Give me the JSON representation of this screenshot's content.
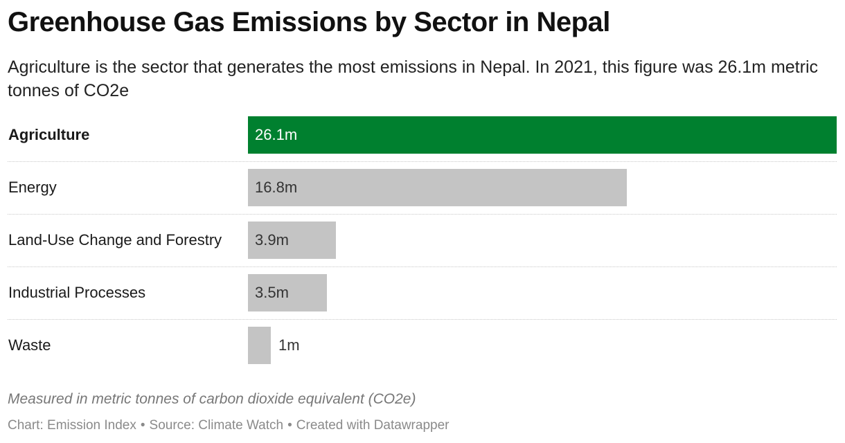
{
  "title": "Greenhouse Gas Emissions by Sector in Nepal",
  "subtitle": "Agriculture is the sector that generates the most emissions in Nepal. In 2021, this figure was 26.1m metric tonnes of CO2e",
  "note": "Measured in metric tonnes of carbon dioxide equivalent (CO2e)",
  "footer": {
    "chart": "Chart: Emission Index",
    "source": "Source: Climate Watch",
    "created": "Created with Datawrapper",
    "separator": "•"
  },
  "colors": {
    "highlight": "#00802f",
    "default_bar": "#c4c4c4",
    "highlight_text": "#ffffff",
    "default_text": "#333333"
  },
  "chart_data": {
    "type": "bar",
    "orientation": "horizontal",
    "categories": [
      "Agriculture",
      "Energy",
      "Land-Use Change and Forestry",
      "Industrial Processes",
      "Waste"
    ],
    "values": [
      26.1,
      16.8,
      3.9,
      3.5,
      1
    ],
    "value_labels": [
      "26.1m",
      "16.8m",
      "3.9m",
      "3.5m",
      "1m"
    ],
    "highlighted": "Agriculture",
    "xlim": [
      0,
      26.1
    ],
    "grid": false,
    "legend": "none"
  }
}
